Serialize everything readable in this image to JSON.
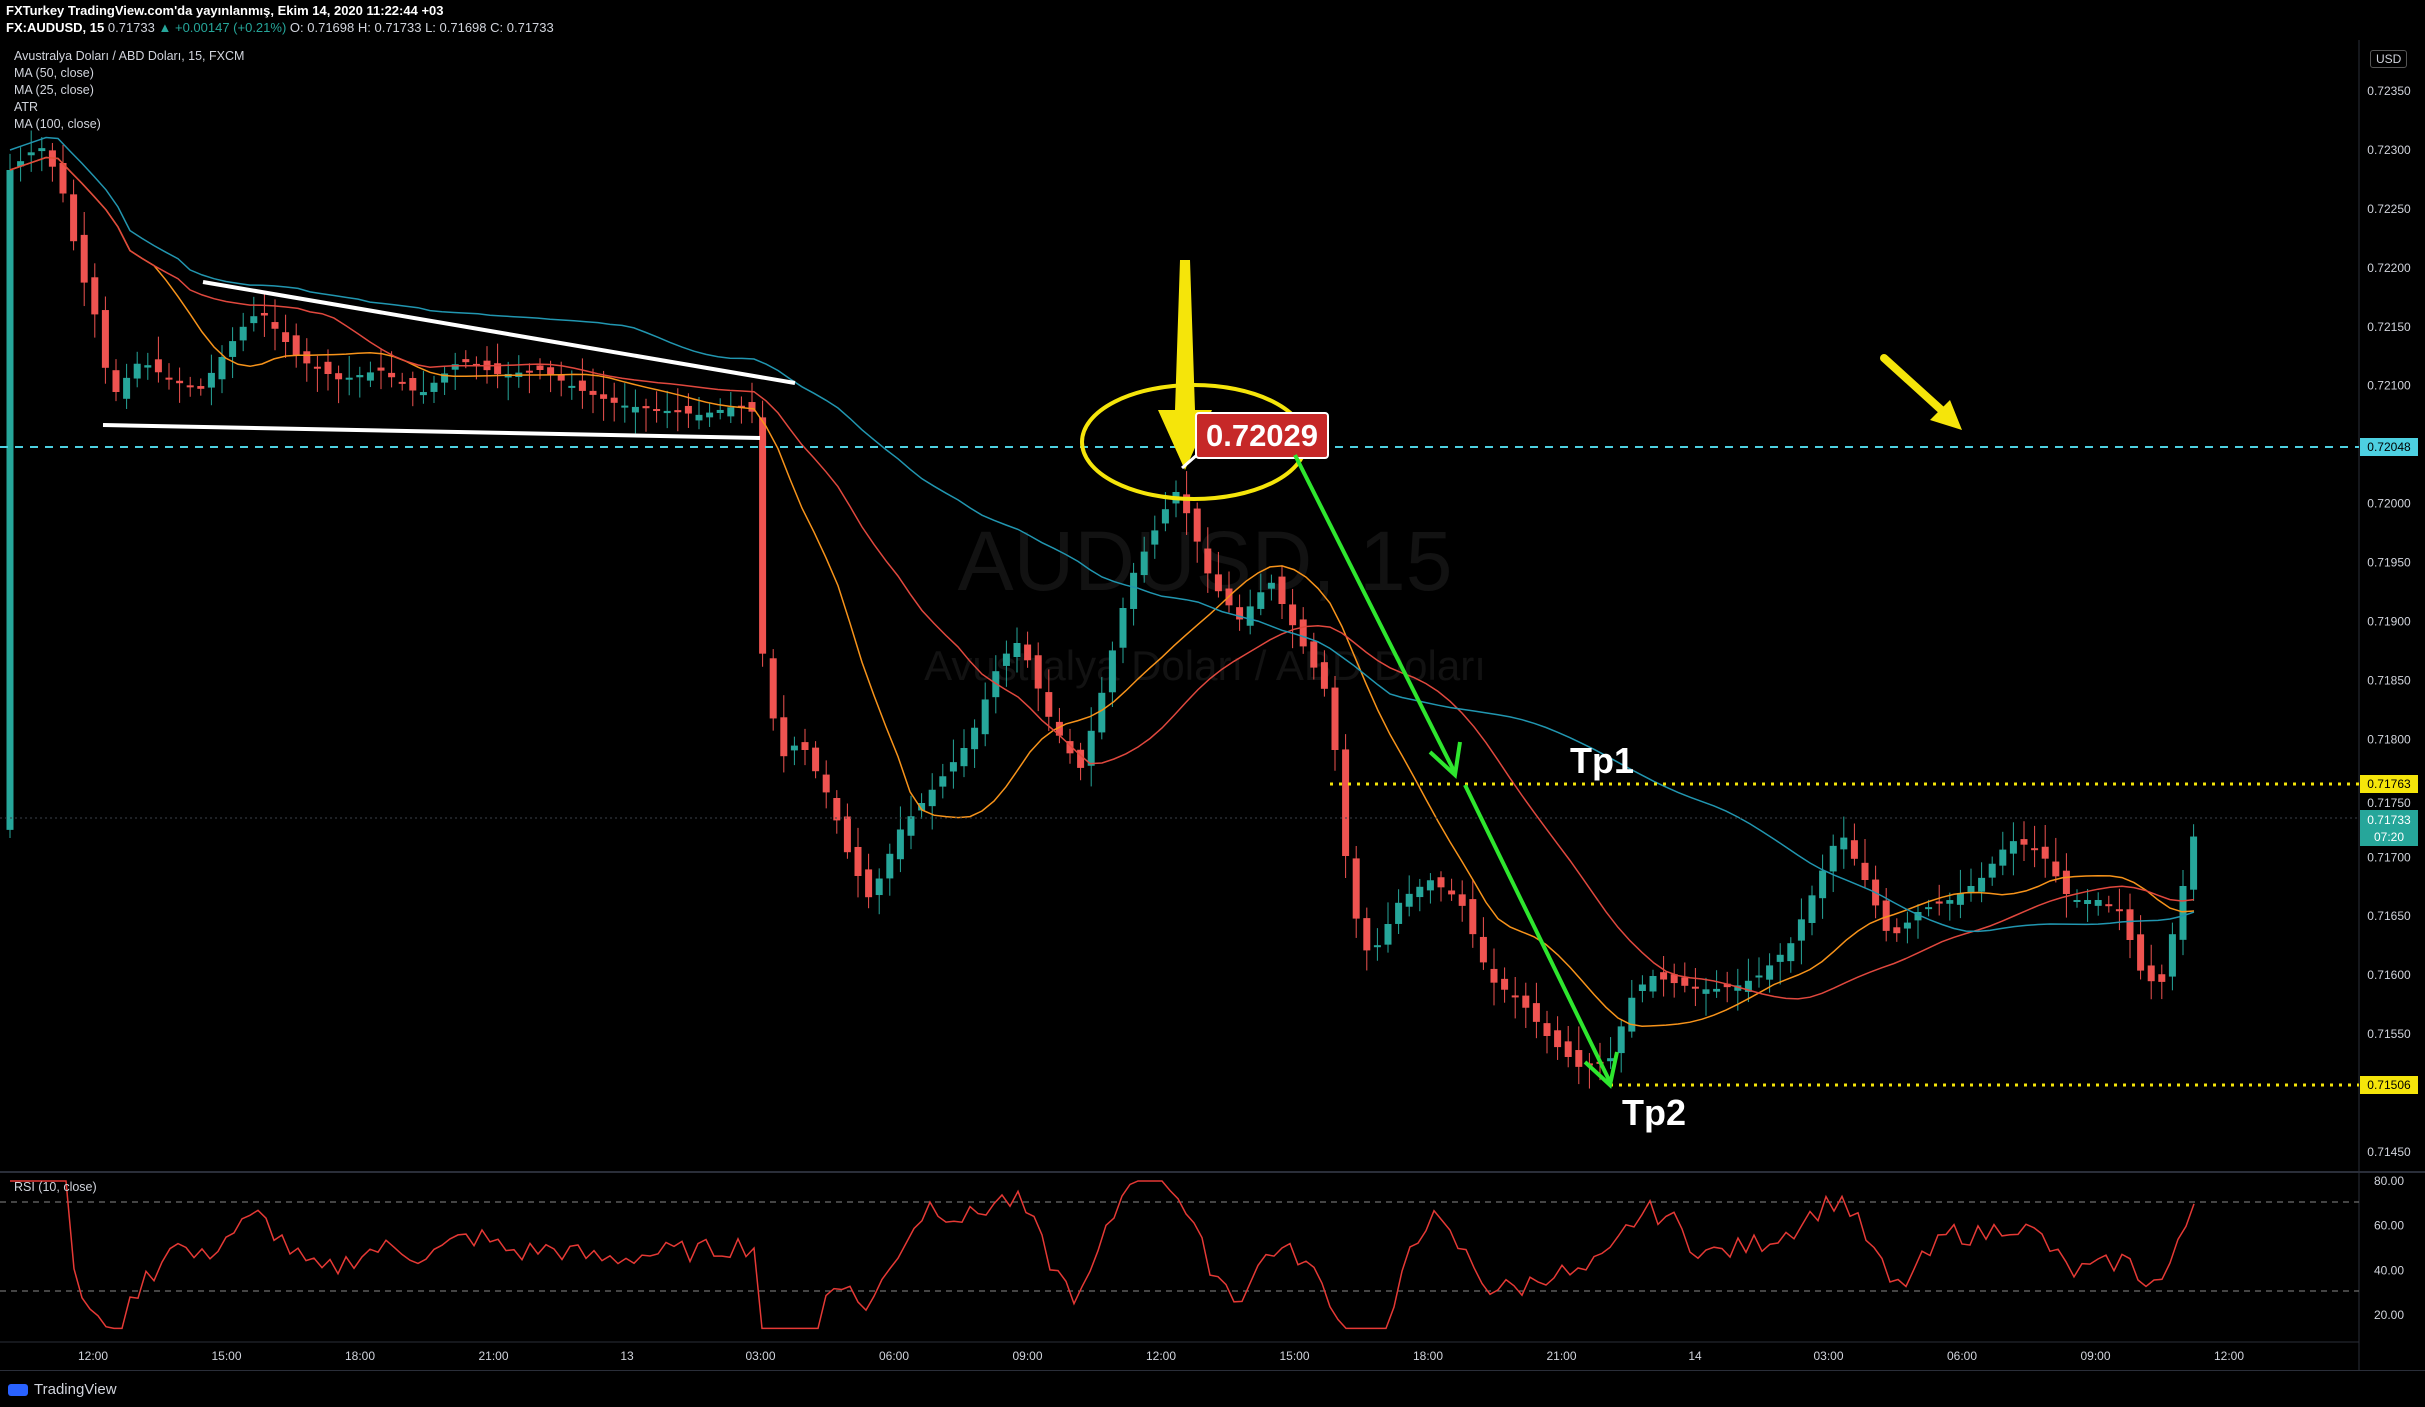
{
  "header": {
    "line1": "FXTurkey TradingView.com'da yayınlanmış, Ekim 14, 2020 11:22:44 +03",
    "line2_symbol": "FX:AUDUSD, 15",
    "line2_price": "0.71733",
    "line2_change": "▲ +0.00147 (+0.21%)",
    "line2_ohlc": "O: 0.71698 H: 0.71733 L: 0.71698 C: 0.71733"
  },
  "legend": {
    "title": "Avustralya Doları / ABD Doları, 15, FXCM",
    "items": [
      "MA (50, close)",
      "MA (25, close)",
      "ATR",
      "MA (100, close)"
    ]
  },
  "watermark": {
    "symbol": "AUDUSD, 15",
    "name": "Avustralya Doları / ABD Doları"
  },
  "currency_badge": "USD",
  "annotations": {
    "price_box": "0.72029",
    "tp1": "Tp1",
    "tp2": "Tp2"
  },
  "price_tags": {
    "cyan_line": "0.72048",
    "tp1_line": "0.71763",
    "tp2_line": "0.71506",
    "last_price": "0.71733",
    "countdown": "07:20",
    "partial_tick": "0.71750"
  },
  "rsi_label": "RSI (10, close)",
  "footer_logo": "TradingView",
  "colors": {
    "background": "#000000",
    "up": "#26a69a",
    "down": "#ef5350",
    "ma50": "#e0483e",
    "ma25": "#f7931a",
    "ma100": "#2196b0",
    "cyan_line": "#4dd0e1",
    "yellow": "#f5e50a",
    "green_arrow": "#2ee62e",
    "rsi": "#e53935"
  },
  "chart_data": {
    "type": "candlestick",
    "symbol": "FX:AUDUSD",
    "timeframe": "15",
    "y_ticks": [
      "0.72350",
      "0.72300",
      "0.72250",
      "0.72200",
      "0.72150",
      "0.72100",
      "0.72000",
      "0.71950",
      "0.71900",
      "0.71850",
      "0.71800",
      "0.71700",
      "0.71650",
      "0.71600",
      "0.71550",
      "0.71450"
    ],
    "x_ticks": [
      "12:00",
      "15:00",
      "18:00",
      "21:00",
      "13",
      "03:00",
      "06:00",
      "09:00",
      "12:00",
      "15:00",
      "18:00",
      "21:00",
      "14",
      "03:00",
      "06:00",
      "09:00",
      "12:00"
    ],
    "ylim": [
      0.7141,
      0.7238
    ],
    "rsi_ticks": [
      "80.00",
      "60.00",
      "40.00",
      "20.00"
    ],
    "rsi_levels": [
      70,
      30
    ],
    "horizontal_lines": [
      {
        "name": "resistance",
        "value": 0.72048,
        "style": "dashed"
      },
      {
        "name": "Tp1",
        "value": 0.71763,
        "style": "dotted"
      },
      {
        "name": "Tp2",
        "value": 0.71506,
        "style": "dotted"
      }
    ],
    "marked_high": 0.72029,
    "last_price": 0.71733
  }
}
